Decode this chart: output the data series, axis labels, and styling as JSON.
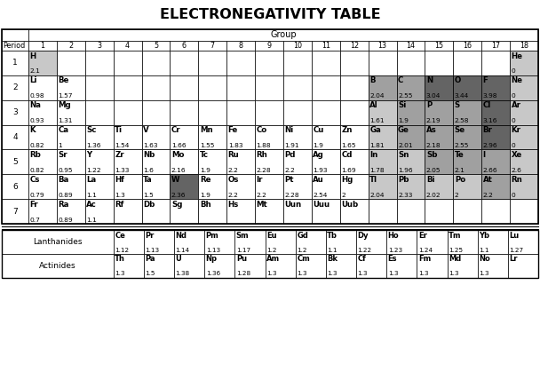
{
  "title": "ELECTRONEGATIVITY TABLE",
  "groups": [
    "1",
    "2",
    "3",
    "4",
    "5",
    "6",
    "7",
    "8",
    "9",
    "10",
    "11",
    "12",
    "13",
    "14",
    "15",
    "16",
    "17",
    "18"
  ],
  "elements": {
    "H": {
      "period": 1,
      "group": 1,
      "en": "2.1",
      "color": "light_gray"
    },
    "He": {
      "period": 1,
      "group": 18,
      "en": "0",
      "color": "light_gray"
    },
    "Li": {
      "period": 2,
      "group": 1,
      "en": "0.98",
      "color": "white"
    },
    "Be": {
      "period": 2,
      "group": 2,
      "en": "1.57",
      "color": "white"
    },
    "B": {
      "period": 2,
      "group": 13,
      "en": "2.04",
      "color": "medium_gray"
    },
    "C": {
      "period": 2,
      "group": 14,
      "en": "2.55",
      "color": "medium_gray"
    },
    "N": {
      "period": 2,
      "group": 15,
      "en": "3.04",
      "color": "dark_gray"
    },
    "O": {
      "period": 2,
      "group": 16,
      "en": "3.44",
      "color": "dark_gray"
    },
    "F": {
      "period": 2,
      "group": 17,
      "en": "3.98",
      "color": "dark_gray"
    },
    "Ne": {
      "period": 2,
      "group": 18,
      "en": "0",
      "color": "light_gray"
    },
    "Na": {
      "period": 3,
      "group": 1,
      "en": "0.93",
      "color": "white"
    },
    "Mg": {
      "period": 3,
      "group": 2,
      "en": "1.31",
      "color": "white"
    },
    "Al": {
      "period": 3,
      "group": 13,
      "en": "1.61",
      "color": "light_gray"
    },
    "Si": {
      "period": 3,
      "group": 14,
      "en": "1.9",
      "color": "medium_gray"
    },
    "P": {
      "period": 3,
      "group": 15,
      "en": "2.19",
      "color": "medium_gray"
    },
    "S": {
      "period": 3,
      "group": 16,
      "en": "2.58",
      "color": "medium_gray"
    },
    "Cl": {
      "period": 3,
      "group": 17,
      "en": "3.16",
      "color": "dark_gray"
    },
    "Ar": {
      "period": 3,
      "group": 18,
      "en": "0",
      "color": "light_gray"
    },
    "K": {
      "period": 4,
      "group": 1,
      "en": "0.82",
      "color": "white"
    },
    "Ca": {
      "period": 4,
      "group": 2,
      "en": "1",
      "color": "white"
    },
    "Sc": {
      "period": 4,
      "group": 3,
      "en": "1.36",
      "color": "white"
    },
    "Ti": {
      "period": 4,
      "group": 4,
      "en": "1.54",
      "color": "white"
    },
    "V": {
      "period": 4,
      "group": 5,
      "en": "1.63",
      "color": "white"
    },
    "Cr": {
      "period": 4,
      "group": 6,
      "en": "1.66",
      "color": "white"
    },
    "Mn": {
      "period": 4,
      "group": 7,
      "en": "1.55",
      "color": "white"
    },
    "Fe": {
      "period": 4,
      "group": 8,
      "en": "1.83",
      "color": "white"
    },
    "Co": {
      "period": 4,
      "group": 9,
      "en": "1.88",
      "color": "white"
    },
    "Ni": {
      "period": 4,
      "group": 10,
      "en": "1.91",
      "color": "white"
    },
    "Cu": {
      "period": 4,
      "group": 11,
      "en": "1.9",
      "color": "white"
    },
    "Zn": {
      "period": 4,
      "group": 12,
      "en": "1.65",
      "color": "white"
    },
    "Ga": {
      "period": 4,
      "group": 13,
      "en": "1.81",
      "color": "light_gray"
    },
    "Ge": {
      "period": 4,
      "group": 14,
      "en": "2.01",
      "color": "medium_gray"
    },
    "As": {
      "period": 4,
      "group": 15,
      "en": "2.18",
      "color": "medium_gray"
    },
    "Se": {
      "period": 4,
      "group": 16,
      "en": "2.55",
      "color": "medium_gray"
    },
    "Br": {
      "period": 4,
      "group": 17,
      "en": "2.96",
      "color": "dark_gray"
    },
    "Kr": {
      "period": 4,
      "group": 18,
      "en": "0",
      "color": "light_gray"
    },
    "Rb": {
      "period": 5,
      "group": 1,
      "en": "0.82",
      "color": "white"
    },
    "Sr": {
      "period": 5,
      "group": 2,
      "en": "0.95",
      "color": "white"
    },
    "Y": {
      "period": 5,
      "group": 3,
      "en": "1.22",
      "color": "white"
    },
    "Zr": {
      "period": 5,
      "group": 4,
      "en": "1.33",
      "color": "white"
    },
    "Nb": {
      "period": 5,
      "group": 5,
      "en": "1.6",
      "color": "white"
    },
    "Mo": {
      "period": 5,
      "group": 6,
      "en": "2.16",
      "color": "white"
    },
    "Tc": {
      "period": 5,
      "group": 7,
      "en": "1.9",
      "color": "white"
    },
    "Ru": {
      "period": 5,
      "group": 8,
      "en": "2.2",
      "color": "white"
    },
    "Rh": {
      "period": 5,
      "group": 9,
      "en": "2.28",
      "color": "white"
    },
    "Pd": {
      "period": 5,
      "group": 10,
      "en": "2.2",
      "color": "white"
    },
    "Ag": {
      "period": 5,
      "group": 11,
      "en": "1.93",
      "color": "white"
    },
    "Cd": {
      "period": 5,
      "group": 12,
      "en": "1.69",
      "color": "white"
    },
    "In": {
      "period": 5,
      "group": 13,
      "en": "1.78",
      "color": "light_gray"
    },
    "Sn": {
      "period": 5,
      "group": 14,
      "en": "1.96",
      "color": "light_gray"
    },
    "Sb": {
      "period": 5,
      "group": 15,
      "en": "2.05",
      "color": "medium_gray"
    },
    "Te": {
      "period": 5,
      "group": 16,
      "en": "2.1",
      "color": "medium_gray"
    },
    "I": {
      "period": 5,
      "group": 17,
      "en": "2.66",
      "color": "medium_gray"
    },
    "Xe": {
      "period": 5,
      "group": 18,
      "en": "2.6",
      "color": "light_gray"
    },
    "Cs": {
      "period": 6,
      "group": 1,
      "en": "0.79",
      "color": "white"
    },
    "Ba": {
      "period": 6,
      "group": 2,
      "en": "0.89",
      "color": "white"
    },
    "La": {
      "period": 6,
      "group": 3,
      "en": "1.1",
      "color": "white"
    },
    "Hf": {
      "period": 6,
      "group": 4,
      "en": "1.3",
      "color": "white"
    },
    "Ta": {
      "period": 6,
      "group": 5,
      "en": "1.5",
      "color": "white"
    },
    "W": {
      "period": 6,
      "group": 6,
      "en": "2.36",
      "color": "dark_gray"
    },
    "Re": {
      "period": 6,
      "group": 7,
      "en": "1.9",
      "color": "white"
    },
    "Os": {
      "period": 6,
      "group": 8,
      "en": "2.2",
      "color": "white"
    },
    "Ir": {
      "period": 6,
      "group": 9,
      "en": "2.2",
      "color": "white"
    },
    "Pt": {
      "period": 6,
      "group": 10,
      "en": "2.28",
      "color": "white"
    },
    "Au": {
      "period": 6,
      "group": 11,
      "en": "2.54",
      "color": "white"
    },
    "Hg": {
      "period": 6,
      "group": 12,
      "en": "2",
      "color": "white"
    },
    "Tl": {
      "period": 6,
      "group": 13,
      "en": "2.04",
      "color": "light_gray"
    },
    "Pb": {
      "period": 6,
      "group": 14,
      "en": "2.33",
      "color": "light_gray"
    },
    "Bi": {
      "period": 6,
      "group": 15,
      "en": "2.02",
      "color": "light_gray"
    },
    "Po": {
      "period": 6,
      "group": 16,
      "en": "2",
      "color": "light_gray"
    },
    "At": {
      "period": 6,
      "group": 17,
      "en": "2.2",
      "color": "medium_gray"
    },
    "Rn": {
      "period": 6,
      "group": 18,
      "en": "0",
      "color": "light_gray"
    },
    "Fr": {
      "period": 7,
      "group": 1,
      "en": "0.7",
      "color": "white"
    },
    "Ra": {
      "period": 7,
      "group": 2,
      "en": "0.89",
      "color": "white"
    },
    "Ac": {
      "period": 7,
      "group": 3,
      "en": "1.1",
      "color": "white"
    },
    "Rf": {
      "period": 7,
      "group": 4,
      "en": "",
      "color": "white"
    },
    "Db": {
      "period": 7,
      "group": 5,
      "en": "",
      "color": "white"
    },
    "Sg": {
      "period": 7,
      "group": 6,
      "en": "",
      "color": "white"
    },
    "Bh": {
      "period": 7,
      "group": 7,
      "en": "",
      "color": "white"
    },
    "Hs": {
      "period": 7,
      "group": 8,
      "en": "",
      "color": "white"
    },
    "Mt": {
      "period": 7,
      "group": 9,
      "en": "",
      "color": "white"
    },
    "Uun": {
      "period": 7,
      "group": 10,
      "en": "",
      "color": "white"
    },
    "Uuu": {
      "period": 7,
      "group": 11,
      "en": "",
      "color": "white"
    },
    "Uub": {
      "period": 7,
      "group": 12,
      "en": "",
      "color": "white"
    }
  },
  "lanthanides": [
    {
      "sym": "Ce",
      "en": "1.12"
    },
    {
      "sym": "Pr",
      "en": "1.13"
    },
    {
      "sym": "Nd",
      "en": "1.14"
    },
    {
      "sym": "Pm",
      "en": "1.13"
    },
    {
      "sym": "Sm",
      "en": "1.17"
    },
    {
      "sym": "Eu",
      "en": "1.2"
    },
    {
      "sym": "Gd",
      "en": "1.2"
    },
    {
      "sym": "Tb",
      "en": "1.1"
    },
    {
      "sym": "Dy",
      "en": "1.22"
    },
    {
      "sym": "Ho",
      "en": "1.23"
    },
    {
      "sym": "Er",
      "en": "1.24"
    },
    {
      "sym": "Tm",
      "en": "1.25"
    },
    {
      "sym": "Yb",
      "en": "1.1"
    },
    {
      "sym": "Lu",
      "en": "1.27"
    }
  ],
  "actinides": [
    {
      "sym": "Th",
      "en": "1.3"
    },
    {
      "sym": "Pa",
      "en": "1.5"
    },
    {
      "sym": "U",
      "en": "1.38"
    },
    {
      "sym": "Np",
      "en": "1.36"
    },
    {
      "sym": "Pu",
      "en": "1.28"
    },
    {
      "sym": "Am",
      "en": "1.3"
    },
    {
      "sym": "Cm",
      "en": "1.3"
    },
    {
      "sym": "Bk",
      "en": "1.3"
    },
    {
      "sym": "Cf",
      "en": "1.3"
    },
    {
      "sym": "Es",
      "en": "1.3"
    },
    {
      "sym": "Fm",
      "en": "1.3"
    },
    {
      "sym": "Md",
      "en": "1.3"
    },
    {
      "sym": "No",
      "en": "1.3"
    },
    {
      "sym": "Lr",
      "en": ""
    }
  ],
  "colors": {
    "white": "#FFFFFF",
    "light_gray": "#C8C8C8",
    "medium_gray": "#A0A0A0",
    "dark_gray": "#646464",
    "background": "#FFFFFF"
  },
  "fig_width": 6.08,
  "fig_height": 4.37,
  "dpi": 100
}
